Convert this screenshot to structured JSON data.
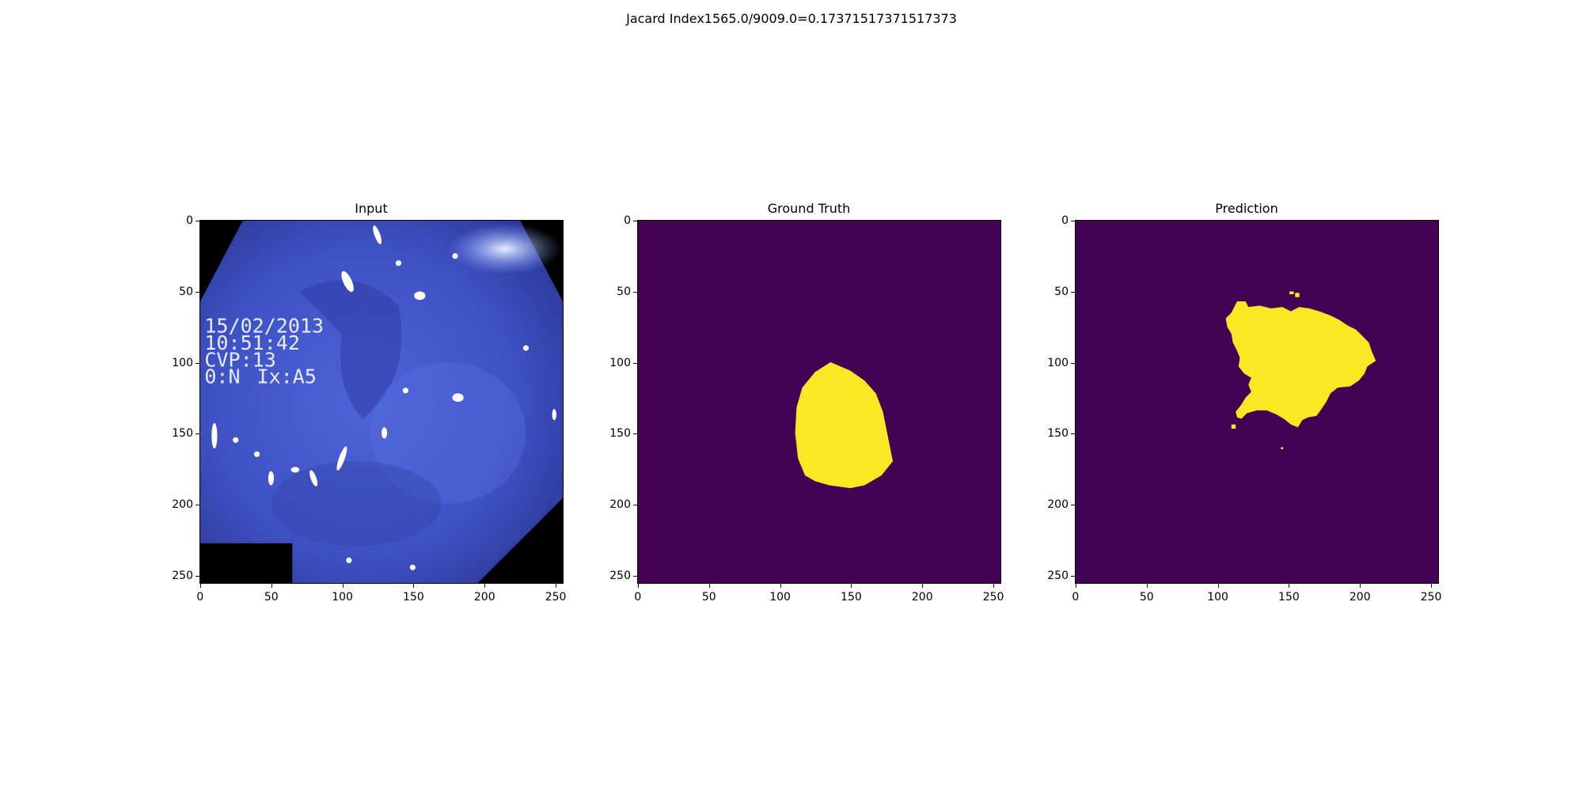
{
  "suptitle": "Jacard Index1565.0/9009.0=0.17371517371517373",
  "panels": [
    {
      "title": "Input",
      "image": "endoscopy-frame"
    },
    {
      "title": "Ground Truth",
      "image": "ground-truth-mask"
    },
    {
      "title": "Prediction",
      "image": "predicted-mask"
    }
  ],
  "axis": {
    "yticks": [
      "0",
      "50",
      "100",
      "150",
      "200",
      "250"
    ],
    "xticks": [
      "0",
      "50",
      "100",
      "150",
      "200",
      "250"
    ]
  },
  "osd": {
    "date": "15/02/2013",
    "time": "10:51:42",
    "cvp": "CVP:13",
    "line4a": "0:N",
    "line4b": "Ix:A5"
  },
  "colors": {
    "mask_background": "#440154",
    "mask_foreground": "#fde725",
    "endoscopy_blue": "#4a5fd0"
  }
}
